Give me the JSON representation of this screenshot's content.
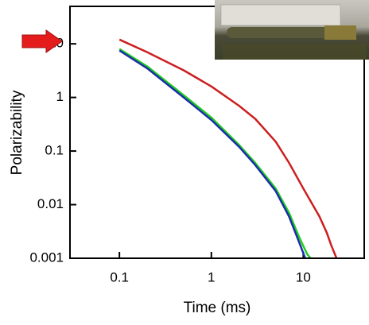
{
  "chart_data": {
    "type": "line",
    "xlabel": "Time (ms)",
    "ylabel": "Polarizability",
    "xscale": "log",
    "yscale": "log",
    "xlim": [
      0.029,
      46
    ],
    "ylim": [
      0.001,
      50
    ],
    "xticks": [
      0.1,
      1,
      10
    ],
    "yticks": [
      0.001,
      0.01,
      0.1,
      1,
      10
    ],
    "series": [
      {
        "color": "#cc1f1f",
        "x": [
          0.1,
          0.2,
          0.5,
          1,
          2,
          3,
          5,
          7,
          10,
          15,
          18,
          20,
          22,
          23
        ],
        "values": [
          12,
          7,
          3.2,
          1.6,
          0.7,
          0.4,
          0.15,
          0.06,
          0.02,
          0.006,
          0.003,
          0.0018,
          0.0012,
          0.001
        ]
      },
      {
        "color": "#22cc22",
        "x": [
          0.1,
          0.2,
          0.5,
          1,
          2,
          3,
          5,
          7,
          9,
          11,
          12
        ],
        "values": [
          8,
          3.8,
          1.1,
          0.42,
          0.13,
          0.06,
          0.02,
          0.007,
          0.0025,
          0.0012,
          0.001
        ]
      },
      {
        "color": "#1a2fa8",
        "x": [
          0.1,
          0.2,
          0.5,
          1,
          2,
          3,
          5,
          7,
          9,
          10.5
        ],
        "values": [
          7.5,
          3.5,
          1.0,
          0.38,
          0.12,
          0.055,
          0.018,
          0.006,
          0.002,
          0.001
        ]
      }
    ]
  }
}
